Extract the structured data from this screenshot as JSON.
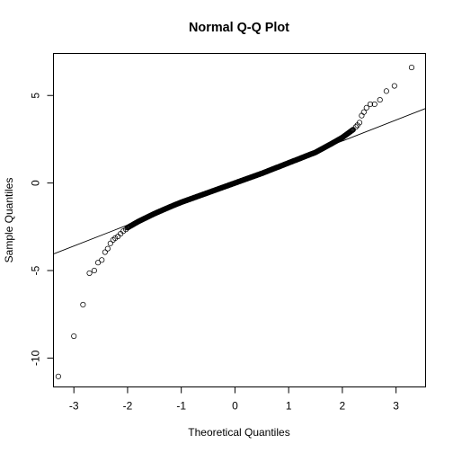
{
  "chart_data": {
    "type": "scatter",
    "title": "Normal Q-Q Plot",
    "xlabel": "Theoretical Quantiles",
    "ylabel": "Sample Quantiles",
    "xlim": [
      -3.38,
      3.55
    ],
    "ylim": [
      -11.65,
      7.4
    ],
    "x_ticks": [
      -3,
      -2,
      -1,
      0,
      1,
      2,
      3
    ],
    "x_tick_labels": [
      "-3",
      "-2",
      "-1",
      "0",
      "1",
      "2",
      "3"
    ],
    "y_ticks": [
      -10,
      -5,
      0,
      5
    ],
    "y_tick_labels": [
      "-10",
      "-5",
      "0",
      "5"
    ],
    "grid": false,
    "legend": "none",
    "qq_line": {
      "intercept": 0.0,
      "slope": 1.2
    },
    "tail_points": [
      {
        "x": -3.29,
        "y": -11.05
      },
      {
        "x": -3.0,
        "y": -8.75
      },
      {
        "x": -2.83,
        "y": -6.95
      },
      {
        "x": -2.71,
        "y": -5.15
      },
      {
        "x": -2.62,
        "y": -5.0
      },
      {
        "x": -2.55,
        "y": -4.55
      },
      {
        "x": -2.48,
        "y": -4.4
      },
      {
        "x": -2.42,
        "y": -3.95
      },
      {
        "x": -2.37,
        "y": -3.75
      },
      {
        "x": -2.32,
        "y": -3.45
      },
      {
        "x": -2.27,
        "y": -3.25
      },
      {
        "x": -2.23,
        "y": -3.15
      },
      {
        "x": -2.18,
        "y": -3.05
      },
      {
        "x": -2.13,
        "y": -2.9
      },
      {
        "x": -2.08,
        "y": -2.75
      },
      {
        "x": -2.03,
        "y": -2.65
      },
      {
        "x": 2.25,
        "y": 3.2
      },
      {
        "x": 2.28,
        "y": 3.3
      },
      {
        "x": 2.32,
        "y": 3.45
      },
      {
        "x": 2.36,
        "y": 3.85
      },
      {
        "x": 2.4,
        "y": 4.05
      },
      {
        "x": 2.45,
        "y": 4.3
      },
      {
        "x": 2.52,
        "y": 4.5
      },
      {
        "x": 2.6,
        "y": 4.5
      },
      {
        "x": 2.7,
        "y": 4.75
      },
      {
        "x": 2.82,
        "y": 5.25
      },
      {
        "x": 2.97,
        "y": 5.55
      },
      {
        "x": 3.29,
        "y": 6.6
      }
    ],
    "body_curve": [
      {
        "x": -2.0,
        "y": -2.55
      },
      {
        "x": -1.8,
        "y": -2.2
      },
      {
        "x": -1.5,
        "y": -1.75
      },
      {
        "x": -1.2,
        "y": -1.35
      },
      {
        "x": -1.0,
        "y": -1.1
      },
      {
        "x": -0.5,
        "y": -0.55
      },
      {
        "x": 0.0,
        "y": 0.0
      },
      {
        "x": 0.5,
        "y": 0.55
      },
      {
        "x": 1.0,
        "y": 1.15
      },
      {
        "x": 1.5,
        "y": 1.75
      },
      {
        "x": 1.8,
        "y": 2.25
      },
      {
        "x": 2.0,
        "y": 2.6
      },
      {
        "x": 2.2,
        "y": 3.05
      }
    ],
    "body_point_count": 400
  }
}
